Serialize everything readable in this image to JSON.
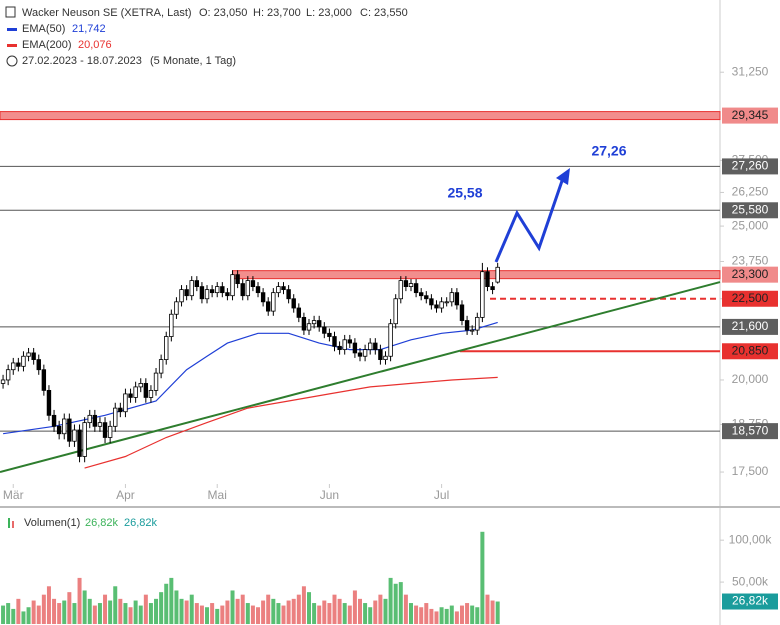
{
  "chart_data": {
    "type": "candlestick",
    "header": {
      "title": "Wacker Neuson SE (XETRA, Last)",
      "open": "O: 23,050",
      "high": "H: 23,700",
      "low": "L: 23,000",
      "close": "C: 23,550",
      "range": "27.02.2023 - 18.07.2023",
      "period": "(5 Monate, 1 Tag)"
    },
    "log_scale": true,
    "xlim": [
      -0.6,
      140.6
    ],
    "ylim": [
      17100,
      34700
    ],
    "xticks": [
      {
        "value": 2,
        "label": "Mär"
      },
      {
        "value": 24,
        "label": "Apr"
      },
      {
        "value": 42,
        "label": "Mai"
      },
      {
        "value": 64,
        "label": "Jun"
      },
      {
        "value": 86,
        "label": "Jul"
      }
    ],
    "yticks": [
      {
        "value": 17500,
        "label": "17,500"
      },
      {
        "value": 18750,
        "label": "18,750"
      },
      {
        "value": 20000,
        "label": "20,000"
      },
      {
        "value": 22500,
        "label": "22,500"
      },
      {
        "value": 23750,
        "label": "23,750"
      },
      {
        "value": 25000,
        "label": "25,000"
      },
      {
        "value": 26250,
        "label": "26,250"
      },
      {
        "value": 27500,
        "label": "27,500"
      },
      {
        "value": 31250,
        "label": "31,250"
      }
    ],
    "candles": [
      [
        19900,
        20150,
        19750,
        20000
      ],
      [
        20000,
        20450,
        19850,
        20300
      ],
      [
        20300,
        20650,
        20150,
        20500
      ],
      [
        20500,
        20650,
        20250,
        20400
      ],
      [
        20400,
        20850,
        20250,
        20700
      ],
      [
        20700,
        20950,
        20550,
        20800
      ],
      [
        20800,
        20950,
        20450,
        20600
      ],
      [
        20600,
        20750,
        20150,
        20300
      ],
      [
        20300,
        20450,
        19550,
        19700
      ],
      [
        19700,
        19850,
        18850,
        19000
      ],
      [
        19000,
        19150,
        18550,
        18700
      ],
      [
        18700,
        18850,
        18350,
        18500
      ],
      [
        18500,
        19050,
        18350,
        18900
      ],
      [
        18900,
        19050,
        18150,
        18300
      ],
      [
        18300,
        18750,
        18150,
        18600
      ],
      [
        18600,
        18750,
        17750,
        17900
      ],
      [
        17900,
        18950,
        17750,
        18800
      ],
      [
        18800,
        19150,
        18650,
        19000
      ],
      [
        19000,
        19150,
        18550,
        18700
      ],
      [
        18700,
        18950,
        18550,
        18800
      ],
      [
        18800,
        18950,
        18250,
        18400
      ],
      [
        18400,
        18850,
        18250,
        18700
      ],
      [
        18700,
        19350,
        18550,
        19200
      ],
      [
        19200,
        19350,
        18950,
        19100
      ],
      [
        19100,
        19750,
        18950,
        19600
      ],
      [
        19600,
        19750,
        19350,
        19500
      ],
      [
        19500,
        19950,
        19350,
        19800
      ],
      [
        19800,
        20050,
        19650,
        19900
      ],
      [
        19900,
        20050,
        19350,
        19500
      ],
      [
        19500,
        19850,
        19350,
        19700
      ],
      [
        19700,
        20350,
        19550,
        20200
      ],
      [
        20200,
        20750,
        20050,
        20600
      ],
      [
        20600,
        21450,
        20450,
        21300
      ],
      [
        21300,
        22150,
        21150,
        22000
      ],
      [
        22000,
        22550,
        21850,
        22400
      ],
      [
        22400,
        22950,
        22250,
        22800
      ],
      [
        22800,
        22950,
        22450,
        22600
      ],
      [
        22600,
        23250,
        22450,
        23100
      ],
      [
        23100,
        23250,
        22750,
        22900
      ],
      [
        22900,
        23050,
        22350,
        22500
      ],
      [
        22500,
        22950,
        22350,
        22800
      ],
      [
        22800,
        22950,
        22550,
        22700
      ],
      [
        22700,
        23050,
        22550,
        22900
      ],
      [
        22900,
        23050,
        22550,
        22700
      ],
      [
        22700,
        22850,
        22450,
        22600
      ],
      [
        22600,
        23450,
        22450,
        23300
      ],
      [
        23300,
        23450,
        22850,
        23000
      ],
      [
        23000,
        23150,
        22450,
        22600
      ],
      [
        22600,
        23250,
        22450,
        23100
      ],
      [
        23100,
        23250,
        22750,
        22900
      ],
      [
        22900,
        23050,
        22550,
        22700
      ],
      [
        22700,
        22850,
        22250,
        22400
      ],
      [
        22400,
        22550,
        21950,
        22100
      ],
      [
        22100,
        22850,
        21950,
        22700
      ],
      [
        22700,
        23050,
        22550,
        22900
      ],
      [
        22900,
        23050,
        22650,
        22800
      ],
      [
        22800,
        22950,
        22350,
        22500
      ],
      [
        22500,
        22650,
        22050,
        22200
      ],
      [
        22200,
        22350,
        21750,
        21900
      ],
      [
        21900,
        22050,
        21350,
        21500
      ],
      [
        21500,
        21850,
        21350,
        21700
      ],
      [
        21700,
        21950,
        21550,
        21800
      ],
      [
        21800,
        21950,
        21450,
        21600
      ],
      [
        21600,
        21750,
        21250,
        21400
      ],
      [
        21400,
        21550,
        21150,
        21300
      ],
      [
        21300,
        21450,
        20850,
        21000
      ],
      [
        21000,
        21150,
        20750,
        20900
      ],
      [
        20900,
        21350,
        20750,
        21200
      ],
      [
        21200,
        21350,
        20950,
        21100
      ],
      [
        21100,
        21250,
        20650,
        20800
      ],
      [
        20800,
        20950,
        20550,
        20700
      ],
      [
        20700,
        21050,
        20550,
        20900
      ],
      [
        20900,
        21250,
        20750,
        21100
      ],
      [
        21100,
        21250,
        20750,
        20900
      ],
      [
        20900,
        21050,
        20450,
        20600
      ],
      [
        20600,
        20850,
        20450,
        20700
      ],
      [
        20700,
        21850,
        20550,
        21700
      ],
      [
        21700,
        22650,
        21550,
        22500
      ],
      [
        22500,
        23250,
        22350,
        23100
      ],
      [
        23100,
        23250,
        22750,
        22900
      ],
      [
        22900,
        23150,
        22750,
        23000
      ],
      [
        23000,
        23150,
        22550,
        22700
      ],
      [
        22700,
        22850,
        22450,
        22600
      ],
      [
        22600,
        22750,
        22350,
        22500
      ],
      [
        22500,
        22650,
        22150,
        22300
      ],
      [
        22300,
        22450,
        22050,
        22200
      ],
      [
        22200,
        22550,
        22050,
        22400
      ],
      [
        22400,
        22550,
        22250,
        22400
      ],
      [
        22400,
        22850,
        22250,
        22700
      ],
      [
        22700,
        22850,
        22150,
        22300
      ],
      [
        22300,
        22450,
        21650,
        21800
      ],
      [
        21800,
        21950,
        21350,
        21500
      ],
      [
        21500,
        21650,
        21350,
        21500
      ],
      [
        21500,
        22050,
        21350,
        21900
      ],
      [
        21900,
        23700,
        21750,
        23400
      ],
      [
        23400,
        23550,
        22750,
        22900
      ],
      [
        22900,
        23050,
        22650,
        22800
      ],
      [
        23050,
        23700,
        23000,
        23550
      ]
    ],
    "series": [
      {
        "name": "EMA(50)",
        "value_label": "21,742",
        "color": "#1f3fd6",
        "x": [
          0,
          10,
          20,
          30,
          36,
          40,
          44,
          50,
          56,
          62,
          68,
          74,
          80,
          86,
          92,
          97
        ],
        "values": [
          18500,
          18700,
          19000,
          19400,
          20300,
          20700,
          21100,
          21400,
          21400,
          21100,
          20900,
          20900,
          21200,
          21400,
          21500,
          21742
        ]
      },
      {
        "name": "EMA(200)",
        "value_label": "20,076",
        "color": "#e8312f",
        "x": [
          16,
          24,
          32,
          40,
          48,
          56,
          64,
          72,
          80,
          88,
          97
        ],
        "values": [
          17600,
          17900,
          18400,
          18800,
          19200,
          19400,
          19600,
          19800,
          19900,
          20000,
          20076
        ]
      }
    ],
    "trendline": {
      "color": "#2e7d2e",
      "x": [
        -0.6,
        140.6
      ],
      "values": [
        17500,
        23050
      ]
    },
    "levels": [
      {
        "value": 29345,
        "label": "29,345",
        "style": "band",
        "color": "#e8312f"
      },
      {
        "value": 27260,
        "label": "27,260",
        "style": "line",
        "color": "#555555"
      },
      {
        "value": 25580,
        "label": "25,580",
        "style": "line",
        "color": "#555555"
      },
      {
        "value": 23300,
        "label": "23,300",
        "style": "band",
        "color": "#e8312f",
        "start": 45
      },
      {
        "value": 22500,
        "label": "22,500",
        "style": "dashed",
        "color": "#e8312f",
        "start": 95.5
      },
      {
        "value": 21600,
        "label": "21,600",
        "style": "line",
        "color": "#555555"
      },
      {
        "value": 20850,
        "label": "20,850",
        "style": "line",
        "color": "#e8312f",
        "start": 89.6
      },
      {
        "value": 18570,
        "label": "18,570",
        "style": "line",
        "color": "#555555"
      }
    ],
    "annotations": [
      "25,58",
      "27,26"
    ],
    "volume": {
      "title": "Volumen(1)",
      "value_label": "26,82k",
      "up_color": "#3cb35a",
      "down_color": "#e86a6a",
      "ylim": [
        0,
        136
      ],
      "yticks": [
        {
          "value": 50,
          "label": "50,00k"
        },
        {
          "value": 100,
          "label": "100,00k"
        }
      ],
      "values": [
        22,
        25,
        18,
        30,
        15,
        20,
        28,
        22,
        35,
        45,
        30,
        25,
        28,
        38,
        25,
        55,
        40,
        30,
        22,
        25,
        35,
        28,
        45,
        30,
        25,
        20,
        28,
        22,
        35,
        25,
        30,
        38,
        48,
        55,
        40,
        30,
        28,
        35,
        25,
        22,
        20,
        25,
        18,
        22,
        28,
        40,
        30,
        35,
        25,
        22,
        20,
        28,
        35,
        30,
        25,
        22,
        28,
        30,
        35,
        45,
        38,
        25,
        22,
        28,
        25,
        35,
        30,
        25,
        22,
        40,
        30,
        25,
        20,
        28,
        35,
        30,
        55,
        48,
        50,
        35,
        25,
        22,
        20,
        25,
        18,
        15,
        20,
        18,
        22,
        15,
        22,
        25,
        22,
        20,
        110,
        35,
        28,
        26.82
      ]
    }
  }
}
